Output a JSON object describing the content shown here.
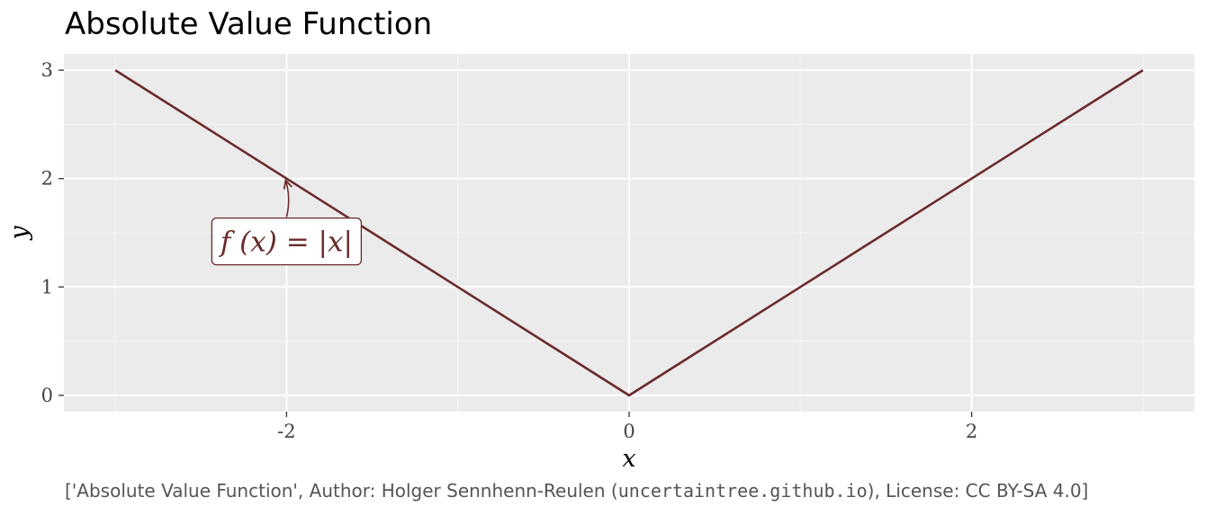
{
  "chart_data": {
    "type": "line",
    "title": "Absolute Value Function",
    "xlabel": "x",
    "ylabel": "y",
    "x": [
      -3,
      0,
      3
    ],
    "series": [
      {
        "values": [
          3,
          0,
          3
        ],
        "color": "#6b2a2a"
      }
    ],
    "xlim": [
      -3.3,
      3.3
    ],
    "ylim": [
      -0.15,
      3.15
    ],
    "x_ticks": [
      -2,
      0,
      2
    ],
    "x_tick_labels": [
      "-2",
      "0",
      "2"
    ],
    "y_ticks": [
      0,
      1,
      2,
      3
    ],
    "y_tick_labels": [
      "0",
      "1",
      "2",
      "3"
    ],
    "grid": true,
    "panel_background": "#ebebeb",
    "annotations": [
      {
        "text": "f (x) = |x|",
        "points_to": {
          "x": -2,
          "y": 2
        },
        "box_center": {
          "x": -2,
          "y": 1.42
        }
      }
    ]
  },
  "caption": {
    "prefix": "['Absolute Value Function', Author: Holger Sennhenn-Reulen (",
    "link": "uncertaintree.github.io",
    "suffix": "), License: CC BY-SA 4.0]"
  }
}
